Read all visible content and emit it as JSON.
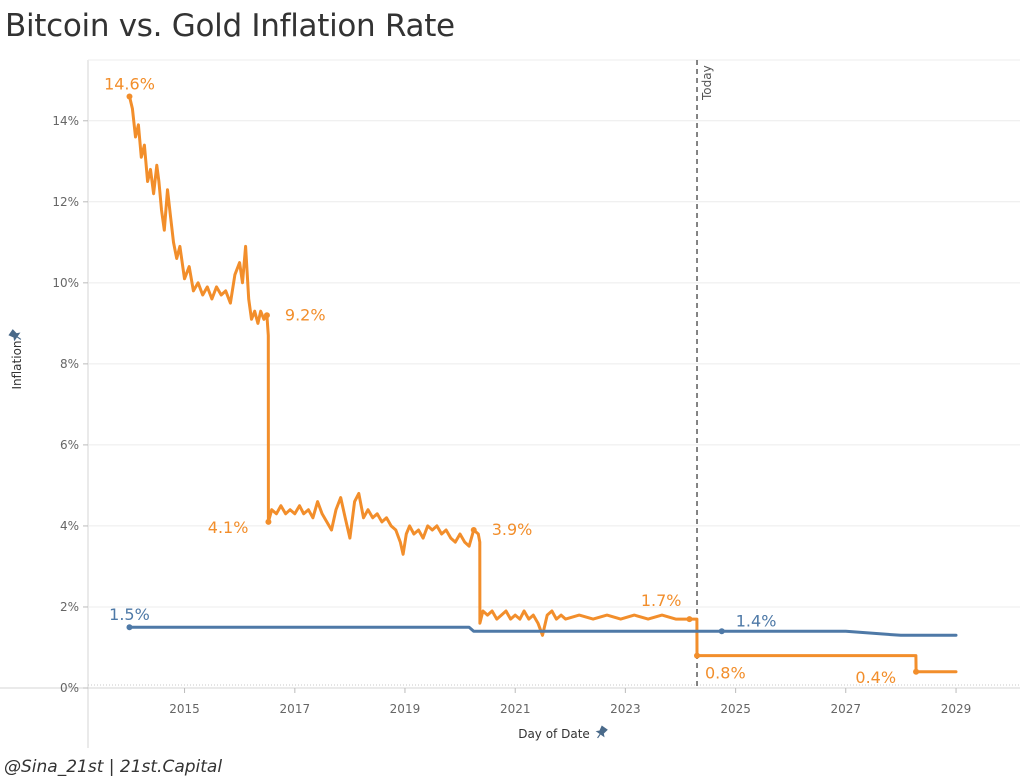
{
  "header": {
    "title": "Bitcoin vs. Gold Inflation Rate"
  },
  "footer": {
    "credit": "@Sina_21st | 21st.Capital"
  },
  "colors": {
    "bitcoin": "#f28e2b",
    "gold": "#4e79a7",
    "reference": "#666666",
    "grid": "#ececec"
  },
  "icons": {
    "axis_pin": "pin-icon"
  },
  "chart_data": {
    "type": "line",
    "xlabel": "Day of Date",
    "ylabel": "Inflation",
    "x_ticks": [
      "2015",
      "2017",
      "2019",
      "2021",
      "2023",
      "2025",
      "2027",
      "2029"
    ],
    "y_ticks": [
      "0%",
      "2%",
      "4%",
      "6%",
      "8%",
      "10%",
      "12%",
      "14%"
    ],
    "xlim": [
      "2013-04-01",
      "2030-03-01"
    ],
    "ylim": [
      0,
      15.5
    ],
    "grid": true,
    "reference_line": {
      "x": "2024-04-20",
      "label": "Today"
    },
    "series": [
      {
        "key": "bitcoin",
        "points": [
          [
            "2014-01-01",
            14.6
          ],
          [
            "2014-01-20",
            14.3
          ],
          [
            "2014-02-10",
            13.6
          ],
          [
            "2014-03-01",
            13.9
          ],
          [
            "2014-03-20",
            13.1
          ],
          [
            "2014-04-10",
            13.4
          ],
          [
            "2014-05-01",
            12.5
          ],
          [
            "2014-05-20",
            12.8
          ],
          [
            "2014-06-10",
            12.2
          ],
          [
            "2014-07-01",
            12.9
          ],
          [
            "2014-07-15",
            12.5
          ],
          [
            "2014-08-01",
            11.8
          ],
          [
            "2014-08-20",
            11.3
          ],
          [
            "2014-09-10",
            12.3
          ],
          [
            "2014-10-01",
            11.6
          ],
          [
            "2014-10-20",
            11.0
          ],
          [
            "2014-11-10",
            10.6
          ],
          [
            "2014-12-01",
            10.9
          ],
          [
            "2015-01-01",
            10.1
          ],
          [
            "2015-02-01",
            10.4
          ],
          [
            "2015-03-01",
            9.8
          ],
          [
            "2015-04-01",
            10.0
          ],
          [
            "2015-05-01",
            9.7
          ],
          [
            "2015-06-01",
            9.9
          ],
          [
            "2015-07-01",
            9.6
          ],
          [
            "2015-08-01",
            9.9
          ],
          [
            "2015-09-01",
            9.7
          ],
          [
            "2015-10-01",
            9.8
          ],
          [
            "2015-11-01",
            9.5
          ],
          [
            "2015-12-01",
            10.2
          ],
          [
            "2016-01-01",
            10.5
          ],
          [
            "2016-01-20",
            10.0
          ],
          [
            "2016-02-10",
            10.9
          ],
          [
            "2016-03-01",
            9.6
          ],
          [
            "2016-03-20",
            9.1
          ],
          [
            "2016-04-10",
            9.3
          ],
          [
            "2016-05-01",
            9.0
          ],
          [
            "2016-05-20",
            9.3
          ],
          [
            "2016-06-10",
            9.1
          ],
          [
            "2016-06-30",
            9.2
          ],
          [
            "2016-07-09",
            8.7
          ],
          [
            "2016-07-10",
            4.1
          ],
          [
            "2016-08-01",
            4.4
          ],
          [
            "2016-09-01",
            4.3
          ],
          [
            "2016-10-01",
            4.5
          ],
          [
            "2016-11-01",
            4.3
          ],
          [
            "2016-12-01",
            4.4
          ],
          [
            "2017-01-01",
            4.3
          ],
          [
            "2017-02-01",
            4.5
          ],
          [
            "2017-03-01",
            4.3
          ],
          [
            "2017-04-01",
            4.4
          ],
          [
            "2017-05-01",
            4.2
          ],
          [
            "2017-06-01",
            4.6
          ],
          [
            "2017-07-01",
            4.3
          ],
          [
            "2017-08-01",
            4.1
          ],
          [
            "2017-09-01",
            3.9
          ],
          [
            "2017-10-01",
            4.4
          ],
          [
            "2017-11-01",
            4.7
          ],
          [
            "2017-12-01",
            4.2
          ],
          [
            "2018-01-01",
            3.7
          ],
          [
            "2018-02-01",
            4.6
          ],
          [
            "2018-03-01",
            4.8
          ],
          [
            "2018-04-01",
            4.2
          ],
          [
            "2018-05-01",
            4.4
          ],
          [
            "2018-06-01",
            4.2
          ],
          [
            "2018-07-01",
            4.3
          ],
          [
            "2018-08-01",
            4.1
          ],
          [
            "2018-09-01",
            4.2
          ],
          [
            "2018-10-01",
            4.0
          ],
          [
            "2018-11-01",
            3.9
          ],
          [
            "2018-12-01",
            3.6
          ],
          [
            "2018-12-20",
            3.3
          ],
          [
            "2019-01-10",
            3.8
          ],
          [
            "2019-02-01",
            4.0
          ],
          [
            "2019-03-01",
            3.8
          ],
          [
            "2019-04-01",
            3.9
          ],
          [
            "2019-05-01",
            3.7
          ],
          [
            "2019-06-01",
            4.0
          ],
          [
            "2019-07-01",
            3.9
          ],
          [
            "2019-08-01",
            4.0
          ],
          [
            "2019-09-01",
            3.8
          ],
          [
            "2019-10-01",
            3.9
          ],
          [
            "2019-11-01",
            3.7
          ],
          [
            "2019-12-01",
            3.6
          ],
          [
            "2020-01-01",
            3.8
          ],
          [
            "2020-02-01",
            3.6
          ],
          [
            "2020-03-01",
            3.5
          ],
          [
            "2020-04-01",
            3.9
          ],
          [
            "2020-05-01",
            3.8
          ],
          [
            "2020-05-11",
            3.6
          ],
          [
            "2020-05-12",
            1.6
          ],
          [
            "2020-06-01",
            1.9
          ],
          [
            "2020-07-01",
            1.8
          ],
          [
            "2020-08-01",
            1.9
          ],
          [
            "2020-09-01",
            1.7
          ],
          [
            "2020-10-01",
            1.8
          ],
          [
            "2020-11-01",
            1.9
          ],
          [
            "2020-12-01",
            1.7
          ],
          [
            "2021-01-01",
            1.8
          ],
          [
            "2021-02-01",
            1.7
          ],
          [
            "2021-03-01",
            1.9
          ],
          [
            "2021-04-01",
            1.7
          ],
          [
            "2021-05-01",
            1.8
          ],
          [
            "2021-06-01",
            1.6
          ],
          [
            "2021-07-01",
            1.3
          ],
          [
            "2021-08-01",
            1.8
          ],
          [
            "2021-09-01",
            1.9
          ],
          [
            "2021-10-01",
            1.7
          ],
          [
            "2021-11-01",
            1.8
          ],
          [
            "2021-12-01",
            1.7
          ],
          [
            "2022-03-01",
            1.8
          ],
          [
            "2022-06-01",
            1.7
          ],
          [
            "2022-09-01",
            1.8
          ],
          [
            "2022-12-01",
            1.7
          ],
          [
            "2023-03-01",
            1.8
          ],
          [
            "2023-06-01",
            1.7
          ],
          [
            "2023-09-01",
            1.8
          ],
          [
            "2023-12-01",
            1.7
          ],
          [
            "2024-03-01",
            1.7
          ],
          [
            "2024-04-19",
            1.7
          ],
          [
            "2024-04-20",
            0.8
          ],
          [
            "2028-04-10",
            0.8
          ],
          [
            "2028-04-11",
            0.4
          ],
          [
            "2029-01-01",
            0.4
          ]
        ]
      },
      {
        "key": "gold",
        "points": [
          [
            "2014-01-01",
            1.5
          ],
          [
            "2015-01-01",
            1.5
          ],
          [
            "2016-01-01",
            1.5
          ],
          [
            "2017-01-01",
            1.5
          ],
          [
            "2018-01-01",
            1.5
          ],
          [
            "2018-12-01",
            1.5
          ],
          [
            "2019-01-01",
            1.5
          ],
          [
            "2020-03-01",
            1.5
          ],
          [
            "2020-04-01",
            1.4
          ],
          [
            "2022-01-01",
            1.4
          ],
          [
            "2024-01-01",
            1.4
          ],
          [
            "2024-10-01",
            1.4
          ],
          [
            "2026-01-01",
            1.4
          ],
          [
            "2027-01-01",
            1.4
          ],
          [
            "2028-01-01",
            1.3
          ],
          [
            "2029-01-01",
            1.3
          ]
        ]
      }
    ],
    "data_labels": [
      {
        "series": "bitcoin",
        "text": "14.6%",
        "x": "2014-01-01",
        "y": 14.6,
        "anchor": "above"
      },
      {
        "series": "bitcoin",
        "text": "9.2%",
        "x": "2016-06-30",
        "y": 9.2,
        "anchor": "right"
      },
      {
        "series": "bitcoin",
        "text": "4.1%",
        "x": "2016-07-10",
        "y": 4.1,
        "anchor": "left"
      },
      {
        "series": "bitcoin",
        "text": "3.9%",
        "x": "2020-04-01",
        "y": 3.9,
        "anchor": "right"
      },
      {
        "series": "bitcoin",
        "text": "1.7%",
        "x": "2024-03-01",
        "y": 1.7,
        "anchor": "above-left"
      },
      {
        "series": "bitcoin",
        "text": "0.8%",
        "x": "2024-04-20",
        "y": 0.8,
        "anchor": "below-right"
      },
      {
        "series": "bitcoin",
        "text": "0.4%",
        "x": "2028-04-11",
        "y": 0.4,
        "anchor": "left"
      },
      {
        "series": "gold",
        "text": "1.5%",
        "x": "2014-01-01",
        "y": 1.5,
        "anchor": "above"
      },
      {
        "series": "gold",
        "text": "1.4%",
        "x": "2024-10-01",
        "y": 1.4,
        "anchor": "above-right"
      }
    ]
  }
}
